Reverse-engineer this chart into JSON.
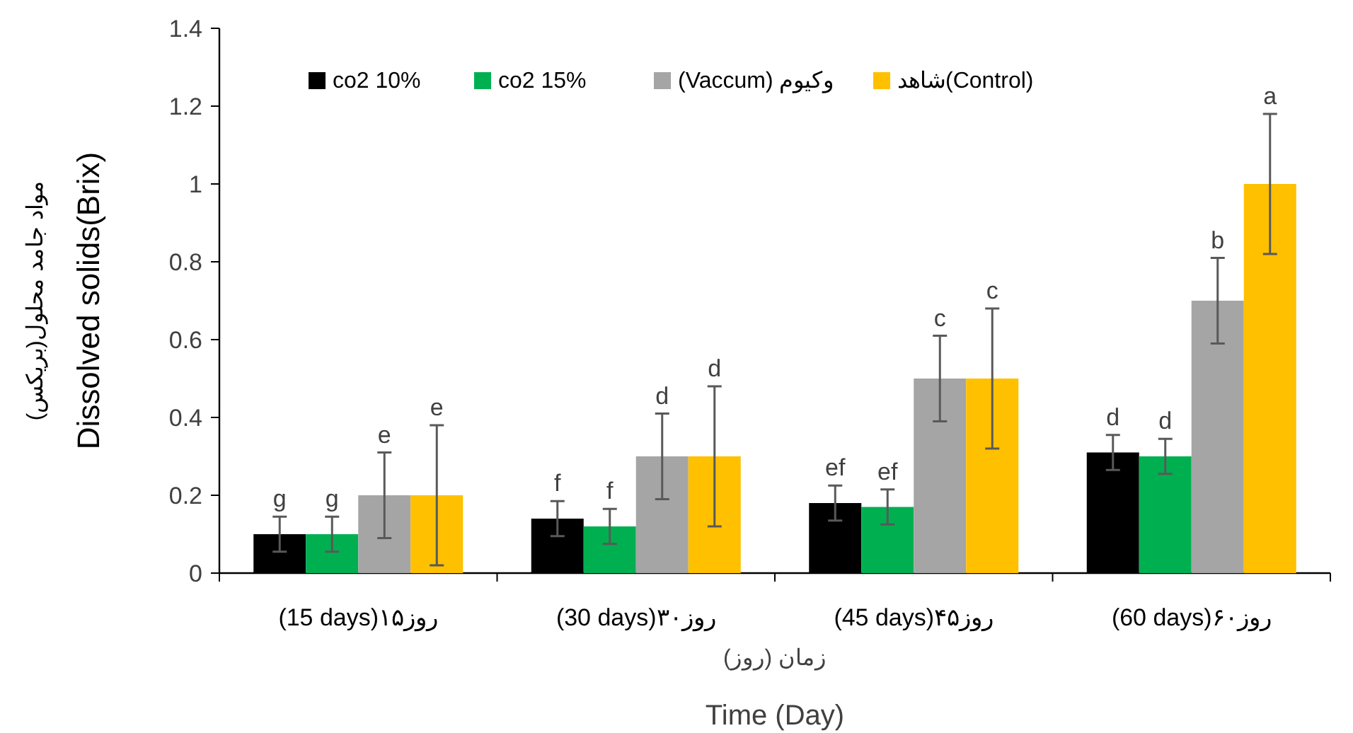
{
  "chart_data": {
    "type": "bar",
    "categories": [
      "(15 days)روز۱۵",
      "(30 days)روز۳۰",
      "(45 days)روز۴۵",
      "(60 days)روز۶۰"
    ],
    "series": [
      {
        "name": "co2 10%",
        "color": "#000000",
        "values": [
          0.1,
          0.14,
          0.18,
          0.31
        ],
        "errors": [
          0.045,
          0.045,
          0.045,
          0.045
        ],
        "value_labels": [
          "g",
          "f",
          "ef",
          "d"
        ]
      },
      {
        "name": "co2 15%",
        "color": "#00b050",
        "values": [
          0.1,
          0.12,
          0.17,
          0.3
        ],
        "errors": [
          0.045,
          0.045,
          0.045,
          0.045
        ],
        "value_labels": [
          "g",
          "f",
          "ef",
          "d"
        ]
      },
      {
        "name": "(Vaccum) وکیوم",
        "color": "#a5a5a5",
        "values": [
          0.2,
          0.3,
          0.5,
          0.7
        ],
        "errors": [
          0.11,
          0.11,
          0.11,
          0.11
        ],
        "value_labels": [
          "e",
          "d",
          "c",
          "b"
        ]
      },
      {
        "name": "شاهد(Control)",
        "color": "#ffc000",
        "values": [
          0.2,
          0.3,
          0.5,
          1.0
        ],
        "errors": [
          0.18,
          0.18,
          0.18,
          0.18
        ],
        "value_labels": [
          "e",
          "d",
          "c",
          "a"
        ]
      }
    ],
    "xlabel": "زمان (روز)\nTime (Day)",
    "ylabel": "مواد جامد محلول(بریکس)\nDissolved solids(Brix)",
    "ylim": [
      0,
      1.4
    ],
    "yticks": [
      0,
      0.2,
      0.4,
      0.6,
      0.8,
      1,
      1.2,
      1.4
    ],
    "legend": "top left",
    "grid": false
  }
}
